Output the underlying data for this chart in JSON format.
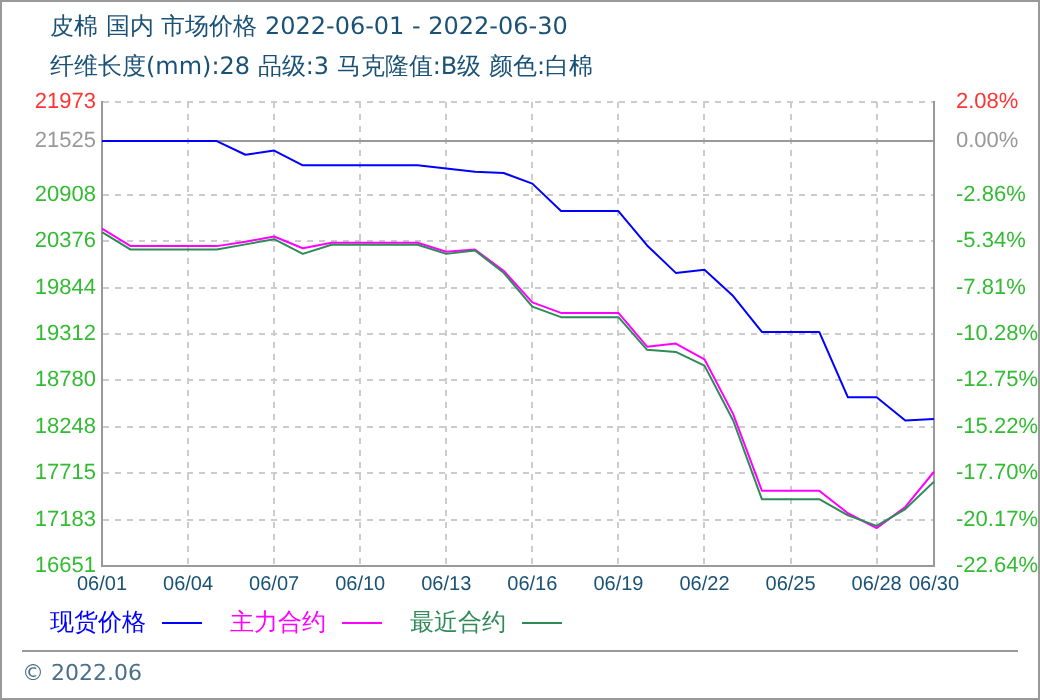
{
  "chart_data": {
    "type": "line",
    "title": "皮棉 国内 市场价格 2022-06-01 - 2022-06-30",
    "subtitle": "纤维长度(mm):28 品级:3 马克隆值:B级 颜色:白棉",
    "categories": [
      "06/01",
      null,
      null,
      "06/04",
      null,
      null,
      "06/07",
      null,
      null,
      "06/10",
      null,
      null,
      "06/13",
      null,
      null,
      "06/16",
      null,
      null,
      "06/19",
      null,
      null,
      "06/22",
      null,
      null,
      "06/25",
      null,
      null,
      "06/28",
      null,
      "06/30"
    ],
    "series": [
      {
        "name": "现货价格",
        "color": "#0000ff",
        "values": [
          21525,
          21525,
          21525,
          21525,
          21525,
          21368,
          21416,
          21247,
          21247,
          21247,
          21247,
          21247,
          21211,
          21174,
          21158,
          21037,
          20722,
          20722,
          20722,
          20328,
          20013,
          20050,
          19747,
          19336,
          19336,
          19336,
          18586,
          18586,
          18320,
          18337
        ]
      },
      {
        "name": "主力合约",
        "color": "#ff00ff",
        "values": [
          20520,
          20320,
          20320,
          20320,
          20320,
          20370,
          20430,
          20296,
          20359,
          20359,
          20359,
          20359,
          20255,
          20280,
          20038,
          19675,
          19554,
          19554,
          19554,
          19167,
          19203,
          19022,
          18393,
          17515,
          17515,
          17515,
          17256,
          17086,
          17328,
          17732
        ]
      },
      {
        "name": "最近合约",
        "color": "#2e8b57",
        "values": [
          20480,
          20280,
          20280,
          20280,
          20280,
          20340,
          20400,
          20231,
          20335,
          20335,
          20335,
          20335,
          20231,
          20270,
          20014,
          19626,
          19505,
          19505,
          19505,
          19130,
          19106,
          18949,
          18320,
          17418,
          17418,
          17418,
          17232,
          17111,
          17304,
          17619
        ]
      }
    ],
    "ylim": [
      16651,
      21973
    ],
    "yticks": [
      16651,
      17183,
      17715,
      18248,
      18780,
      19312,
      19844,
      20376,
      20908,
      21525,
      21973
    ],
    "y2lim": [
      -22.64,
      2.08
    ],
    "y2ticks": [
      {
        "value": -22.64,
        "label": "-22.64%"
      },
      {
        "value": -20.17,
        "label": "-20.17%"
      },
      {
        "value": -17.7,
        "label": "-17.70%"
      },
      {
        "value": -15.22,
        "label": "-15.22%"
      },
      {
        "value": -12.75,
        "label": "-12.75%"
      },
      {
        "value": -10.28,
        "label": "-10.28%"
      },
      {
        "value": -7.81,
        "label": "-7.81%"
      },
      {
        "value": -5.34,
        "label": "-5.34%"
      },
      {
        "value": -2.86,
        "label": "-2.86%"
      },
      {
        "value": 0,
        "label": "0.00%"
      },
      {
        "value": 2.08,
        "label": "2.08%"
      }
    ],
    "ref_lines": [
      {
        "axis": "y",
        "value": 21525,
        "color": "#999999"
      }
    ],
    "grid": true,
    "legend": "bottom",
    "marker": "none",
    "line_style": "solid",
    "annotations": [
      "© 2022.06"
    ]
  }
}
